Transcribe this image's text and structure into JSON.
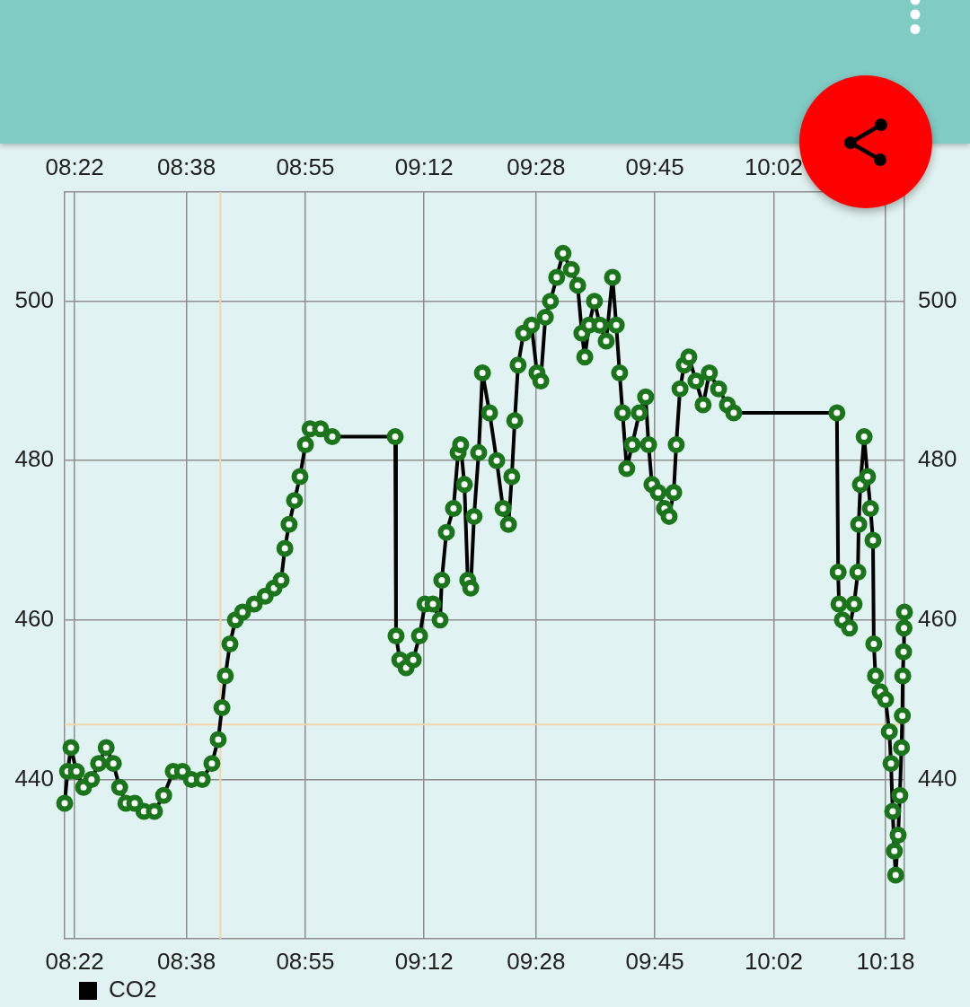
{
  "chart_data": {
    "type": "line",
    "x": [
      8.343,
      8.35,
      8.358,
      8.371,
      8.388,
      8.407,
      8.424,
      8.442,
      8.459,
      8.474,
      8.489,
      8.51,
      8.532,
      8.557,
      8.579,
      8.602,
      8.624,
      8.645,
      8.671,
      8.694,
      8.709,
      8.718,
      8.726,
      8.737,
      8.75,
      8.767,
      8.795,
      8.821,
      8.842,
      8.859,
      8.868,
      8.878,
      8.891,
      8.904,
      8.917,
      8.928,
      8.953,
      8.981,
      9.131,
      9.133,
      9.142,
      9.157,
      9.174,
      9.189,
      9.202,
      9.221,
      9.238,
      9.242,
      9.253,
      9.27,
      9.281,
      9.287,
      9.296,
      9.304,
      9.311,
      9.319,
      9.33,
      9.339,
      9.356,
      9.373,
      9.388,
      9.401,
      9.409,
      9.416,
      9.424,
      9.437,
      9.456,
      9.469,
      9.478,
      9.489,
      9.501,
      9.516,
      9.531,
      9.551,
      9.566,
      9.576,
      9.583,
      9.593,
      9.606,
      9.619,
      9.634,
      9.649,
      9.658,
      9.666,
      9.673,
      9.683,
      9.696,
      9.713,
      9.728,
      9.735,
      9.743,
      9.758,
      9.773,
      9.784,
      9.795,
      9.801,
      9.81,
      9.82,
      9.831,
      9.848,
      9.865,
      9.88,
      9.902,
      9.923,
      9.938,
      10.184,
      10.187,
      10.189,
      10.197,
      10.214,
      10.225,
      10.234,
      10.236,
      10.24,
      10.249,
      10.257,
      10.264,
      10.27,
      10.272,
      10.276,
      10.287,
      10.3,
      10.309,
      10.313,
      10.317,
      10.321,
      10.324,
      10.33,
      10.334,
      10.338,
      10.34,
      10.341,
      10.343,
      10.344,
      10.345
    ],
    "xlim": [
      8.343,
      10.345
    ],
    "xticks": [
      {
        "value": 8.3667,
        "label": "08:22"
      },
      {
        "value": 8.6333,
        "label": "08:38"
      },
      {
        "value": 8.9167,
        "label": "08:55"
      },
      {
        "value": 9.2,
        "label": "09:12"
      },
      {
        "value": 9.4667,
        "label": "09:28"
      },
      {
        "value": 9.75,
        "label": "09:45"
      },
      {
        "value": 10.0333,
        "label": "10:02"
      },
      {
        "value": 10.3,
        "label": "10:18"
      }
    ],
    "x2lim": [
      8.343,
      10.345
    ],
    "x2ticks": [
      {
        "value": 8.3667,
        "label": "08:22"
      },
      {
        "value": 8.6333,
        "label": "08:38"
      },
      {
        "value": 8.9167,
        "label": "08:55"
      },
      {
        "value": 9.2,
        "label": "09:12"
      },
      {
        "value": 9.4667,
        "label": "09:28"
      },
      {
        "value": 9.75,
        "label": "09:45"
      },
      {
        "value": 10.0333,
        "label": "10:02"
      },
      {
        "value": 10.3,
        "label": null
      }
    ],
    "ylim": [
      420,
      513.7
    ],
    "yticks": [
      440,
      460,
      480,
      500
    ],
    "y2lim": [
      420,
      513.7
    ],
    "y2ticks": [
      440,
      460,
      480,
      500
    ],
    "grid": true,
    "legend": "bottom left",
    "ref_lines": [
      {
        "axis": "x",
        "value": 8.714,
        "color": "#f3d6a8"
      },
      {
        "axis": "y",
        "value": 446.9,
        "color": "#f3d6a8"
      }
    ],
    "series": [
      {
        "name": "CO2",
        "color": "#000000",
        "marker": "none",
        "line_style": "solid",
        "values": [
          437,
          441,
          444,
          441,
          439,
          440,
          442,
          444,
          442,
          439,
          437,
          437,
          436,
          436,
          438,
          441,
          441,
          440,
          440,
          442,
          445,
          449,
          453,
          457,
          460,
          461,
          462,
          463,
          464,
          465,
          469,
          472,
          475,
          478,
          482,
          484,
          484,
          483,
          483,
          458,
          455,
          454,
          455,
          458,
          462,
          462,
          460,
          465,
          471,
          474,
          481,
          482,
          477,
          465,
          464,
          473,
          481,
          491,
          486,
          480,
          474,
          472,
          478,
          485,
          492,
          496,
          497,
          491,
          490,
          498,
          500,
          503,
          506,
          504,
          502,
          496,
          493,
          497,
          500,
          497,
          495,
          503,
          497,
          491,
          486,
          479,
          482,
          486,
          488,
          482,
          477,
          476,
          474,
          473,
          476,
          482,
          489,
          492,
          493,
          490,
          487,
          491,
          489,
          487,
          486,
          486,
          466,
          462,
          460,
          459,
          462,
          466,
          472,
          477,
          483,
          478,
          474,
          470,
          457,
          453,
          451,
          450,
          446,
          442,
          436,
          431,
          428,
          433,
          438,
          444,
          448,
          453,
          456,
          459,
          461
        ]
      },
      {
        "type": "scatter",
        "color": "#1b761b",
        "marker": "circle",
        "values": [
          437,
          441,
          444,
          441,
          439,
          440,
          442,
          444,
          442,
          439,
          437,
          437,
          436,
          436,
          438,
          441,
          441,
          440,
          440,
          442,
          445,
          449,
          453,
          457,
          460,
          461,
          462,
          463,
          464,
          465,
          469,
          472,
          475,
          478,
          482,
          484,
          484,
          483,
          483,
          458,
          455,
          454,
          455,
          458,
          462,
          462,
          460,
          465,
          471,
          474,
          481,
          482,
          477,
          465,
          464,
          473,
          481,
          491,
          486,
          480,
          474,
          472,
          478,
          485,
          492,
          496,
          497,
          491,
          490,
          498,
          500,
          503,
          506,
          504,
          502,
          496,
          493,
          497,
          500,
          497,
          495,
          503,
          497,
          491,
          486,
          479,
          482,
          486,
          488,
          482,
          477,
          476,
          474,
          473,
          476,
          482,
          489,
          492,
          493,
          490,
          487,
          491,
          489,
          487,
          486,
          486,
          466,
          462,
          460,
          459,
          462,
          466,
          472,
          477,
          483,
          478,
          474,
          470,
          457,
          453,
          451,
          450,
          446,
          442,
          436,
          431,
          428,
          433,
          438,
          444,
          448,
          453,
          456,
          459,
          461
        ]
      }
    ]
  }
}
